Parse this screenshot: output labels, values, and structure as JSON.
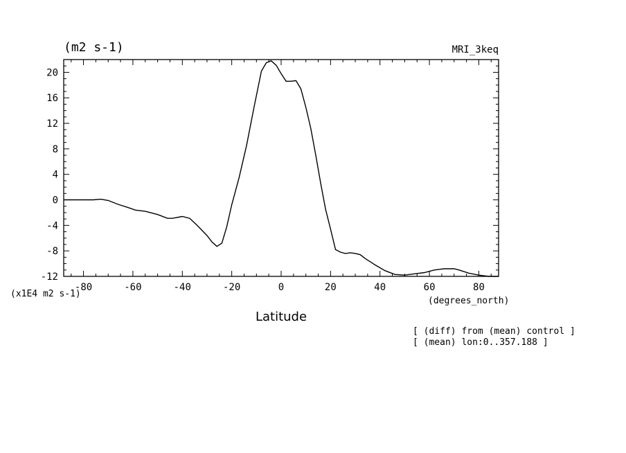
{
  "header": {
    "units": "(m2 s-1)",
    "model": "MRI_3keq"
  },
  "axes": {
    "y_scale_note": "(x1E4 m2 s-1)",
    "x_units": "(degrees_north)",
    "x_title": "Latitude"
  },
  "notes": {
    "line1": "[ (diff) from (mean) control ]",
    "line2": "[ (mean) lon:0..357.188 ]"
  },
  "chart_data": {
    "type": "line",
    "xlabel": "Latitude",
    "xlim": [
      -88,
      88
    ],
    "ylim": [
      -12,
      22
    ],
    "x_ticks": [
      -80,
      -60,
      -40,
      -20,
      0,
      20,
      40,
      60,
      80
    ],
    "x_tick_labels": [
      "-80",
      "-60",
      "-40",
      "-20",
      "0",
      "20",
      "40",
      "60",
      "80"
    ],
    "y_ticks": [
      -12,
      -8,
      -4,
      0,
      4,
      8,
      12,
      16,
      20
    ],
    "y_tick_labels": [
      "-12",
      "-8",
      "-4",
      "0",
      "4",
      "8",
      "12",
      "16",
      "20"
    ],
    "series": [
      {
        "x": [
          -88,
          -82,
          -76,
          -73,
          -70,
          -66,
          -62,
          -59,
          -55,
          -50,
          -46,
          -44,
          -40,
          -37,
          -34,
          -30,
          -28,
          -26,
          -24,
          -22,
          -20,
          -17,
          -14,
          -11,
          -8,
          -6,
          -4,
          -2,
          0,
          2,
          4,
          6,
          8,
          10,
          12,
          14,
          16,
          18,
          20,
          22,
          24,
          26,
          28,
          30,
          32,
          34,
          36,
          38,
          42,
          46,
          50,
          54,
          58,
          62,
          66,
          70,
          72,
          76,
          80,
          84,
          88
        ],
        "y": [
          0,
          0,
          0,
          0.1,
          -0.1,
          -0.7,
          -1.2,
          -1.6,
          -1.8,
          -2.3,
          -2.9,
          -2.9,
          -2.6,
          -2.9,
          -4.0,
          -5.6,
          -6.6,
          -7.3,
          -6.8,
          -4.2,
          -0.8,
          3.5,
          8.5,
          14.5,
          20.2,
          21.5,
          21.8,
          21.1,
          19.8,
          18.6,
          18.6,
          18.7,
          17.4,
          14.5,
          11.2,
          7.0,
          2.6,
          -1.5,
          -4.6,
          -7.8,
          -8.2,
          -8.4,
          -8.3,
          -8.4,
          -8.6,
          -9.2,
          -9.7,
          -10.2,
          -11.1,
          -11.7,
          -11.8,
          -11.6,
          -11.4,
          -11.0,
          -10.8,
          -10.8,
          -11.0,
          -11.5,
          -11.8,
          -12.0,
          -12.0
        ]
      }
    ]
  }
}
